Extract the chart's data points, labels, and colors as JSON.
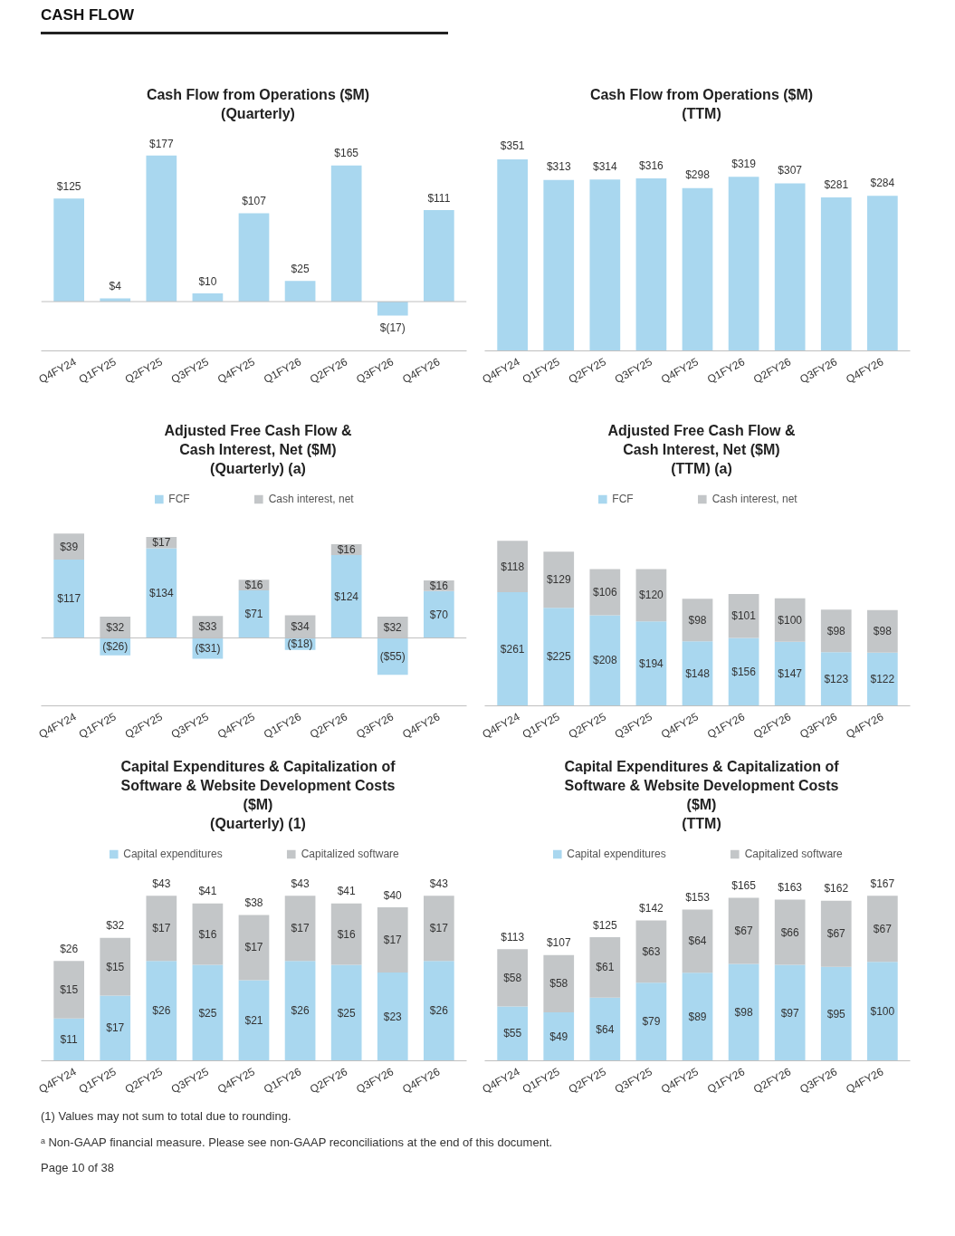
{
  "chart_data": [
    {
      "type": "bar",
      "title": "Cash Flow from Operations ($M)\n(Quarterly)",
      "annotations": [
        "CASH FLOW"
      ],
      "categories": [
        "Q4FY24",
        "Q1FY25",
        "Q2FY25",
        "Q3FY25",
        "Q4FY25",
        "Q1FY26",
        "Q2FY26",
        "Q3FY26",
        "Q4FY26"
      ],
      "values": [
        125,
        4,
        177,
        10,
        107,
        25,
        165,
        -17,
        111
      ],
      "color": "#a9d7ef",
      "value_labels": [
        "$125",
        "$4",
        "$177",
        "$10",
        "$107",
        "$25",
        "$165",
        "$(17)",
        "$111"
      ],
      "ref_lines": [
        {
          "axis": "y",
          "value": 0,
          "color": "#bfbfbf"
        }
      ],
      "tick_labels": "x"
    },
    {
      "type": "bar",
      "title": "Cash Flow from Operations ($M)\n(TTM)",
      "categories": [
        "Q4FY24",
        "Q1FY25",
        "Q2FY25",
        "Q3FY25",
        "Q4FY25",
        "Q1FY26",
        "Q2FY26",
        "Q3FY26",
        "Q4FY26"
      ],
      "values": [
        351,
        313,
        314,
        316,
        298,
        319,
        307,
        281,
        284
      ],
      "color": "#a9d7ef",
      "value_labels": [
        "$351",
        "$313",
        "$314",
        "$316",
        "$298",
        "$319",
        "$307",
        "$281",
        "$284"
      ],
      "tick_labels": "x"
    },
    {
      "type": "bar",
      "title": "Adjusted Free Cash Flow &\nCash Interest, Net ($M)\n(Quarterly) (a)",
      "stacked": true,
      "legend": "top",
      "categories": [
        "Q4FY24",
        "Q1FY25",
        "Q2FY25",
        "Q3FY25",
        "Q4FY25",
        "Q1FY26",
        "Q2FY26",
        "Q3FY26",
        "Q4FY26"
      ],
      "series": [
        {
          "name": "FCF",
          "color": "#a9d7ef",
          "values": [
            117,
            -26,
            134,
            -31,
            71,
            -18,
            124,
            -55,
            70
          ],
          "value_labels": [
            "$117",
            "($26)",
            "$134",
            "($31)",
            "$71",
            "($18)",
            "$124",
            "($55)",
            "$70"
          ]
        },
        {
          "name": "Cash interest, net",
          "color": "#c3c6c8",
          "values": [
            39,
            32,
            17,
            33,
            16,
            34,
            16,
            32,
            16
          ],
          "value_labels": [
            "$39",
            "$32",
            "$17",
            "$33",
            "$16",
            "$34",
            "$16",
            "$32",
            "$16"
          ]
        }
      ],
      "ref_lines": [
        {
          "axis": "y",
          "value": 0,
          "color": "#bfbfbf"
        }
      ],
      "tick_labels": "x"
    },
    {
      "type": "bar",
      "title": "Adjusted Free Cash Flow &\nCash Interest, Net ($M)\n(TTM) (a)",
      "stacked": true,
      "legend": "top",
      "categories": [
        "Q4FY24",
        "Q1FY25",
        "Q2FY25",
        "Q3FY25",
        "Q4FY25",
        "Q1FY26",
        "Q2FY26",
        "Q3FY26",
        "Q4FY26"
      ],
      "series": [
        {
          "name": "FCF",
          "color": "#a9d7ef",
          "values": [
            261,
            225,
            208,
            194,
            148,
            156,
            147,
            123,
            122
          ],
          "value_labels": [
            "$261",
            "$225",
            "$208",
            "$194",
            "$148",
            "$156",
            "$147",
            "$123",
            "$122"
          ]
        },
        {
          "name": "Cash interest, net",
          "color": "#c3c6c8",
          "values": [
            118,
            129,
            106,
            120,
            98,
            101,
            100,
            98,
            98
          ],
          "value_labels": [
            "$118",
            "$129",
            "$106",
            "$120",
            "$98",
            "$101",
            "$100",
            "$98",
            "$98"
          ]
        }
      ],
      "tick_labels": "x"
    },
    {
      "type": "bar",
      "title": "Capital Expenditures & Capitalization of\nSoftware & Website Development Costs\n($M)\n(Quarterly) (1)",
      "stacked": true,
      "legend": "top",
      "categories": [
        "Q4FY24",
        "Q1FY25",
        "Q2FY25",
        "Q3FY25",
        "Q4FY25",
        "Q1FY26",
        "Q2FY26",
        "Q3FY26",
        "Q4FY26"
      ],
      "series": [
        {
          "name": "Capital expenditures",
          "color": "#a9d7ef",
          "values": [
            11,
            17,
            26,
            25,
            21,
            26,
            25,
            23,
            26
          ],
          "value_labels": [
            "$11",
            "$17",
            "$26",
            "$25",
            "$21",
            "$26",
            "$25",
            "$23",
            "$26"
          ]
        },
        {
          "name": "Capitalized software",
          "color": "#c3c6c8",
          "values": [
            15,
            15,
            17,
            16,
            17,
            17,
            16,
            17,
            17
          ],
          "value_labels": [
            "$15",
            "$15",
            "$17",
            "$16",
            "$17",
            "$17",
            "$16",
            "$17",
            "$17"
          ]
        }
      ],
      "totals": [
        "$26",
        "$32",
        "$43",
        "$41",
        "$38",
        "$43",
        "$41",
        "$40",
        "$43"
      ],
      "tick_labels": "x"
    },
    {
      "type": "bar",
      "title": "Capital Expenditures & Capitalization of\nSoftware & Website Development Costs\n($M)\n(TTM)",
      "stacked": true,
      "legend": "top",
      "categories": [
        "Q4FY24",
        "Q1FY25",
        "Q2FY25",
        "Q3FY25",
        "Q4FY25",
        "Q1FY26",
        "Q2FY26",
        "Q3FY26",
        "Q4FY26"
      ],
      "series": [
        {
          "name": "Capital expenditures",
          "color": "#a9d7ef",
          "values": [
            55,
            49,
            64,
            79,
            89,
            98,
            97,
            95,
            100
          ],
          "value_labels": [
            "$55",
            "$49",
            "$64",
            "$79",
            "$89",
            "$98",
            "$97",
            "$95",
            "$100"
          ]
        },
        {
          "name": "Capitalized software",
          "color": "#c3c6c8",
          "values": [
            58,
            58,
            61,
            63,
            64,
            67,
            66,
            67,
            67
          ],
          "value_labels": [
            "$58",
            "$58",
            "$61",
            "$63",
            "$64",
            "$67",
            "$66",
            "$67",
            "$67"
          ]
        }
      ],
      "totals": [
        "$113",
        "$107",
        "$125",
        "$142",
        "$153",
        "$165",
        "$163",
        "$162",
        "$167"
      ],
      "tick_labels": "x",
      "annotations": [
        "(1) Values may not sum to total due to rounding.",
        "ᵃ Non-GAAP financial measure. Please see non-GAAP reconciliations at the end of this document.",
        "Page 10 of 38"
      ]
    }
  ]
}
